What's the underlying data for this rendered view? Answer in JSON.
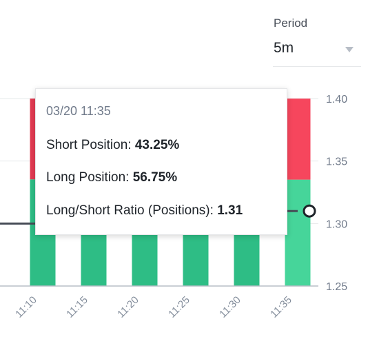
{
  "period": {
    "label": "Period",
    "value": "5m"
  },
  "tooltip": {
    "time": "03/20 11:35",
    "short_label": "Short Position: ",
    "short_value": "43.25%",
    "long_label": "Long Position: ",
    "long_value": "56.75%",
    "ratio_label": "Long/Short Ratio (Positions): ",
    "ratio_value": "1.31"
  },
  "colors": {
    "short": "#e13a52",
    "short_active": "#f6465d",
    "long": "#2ebd85",
    "long_active": "#46d59a",
    "ratio_line": "#474d57"
  },
  "chart_data": {
    "type": "bar",
    "categories": [
      "11:10",
      "11:15",
      "11:20",
      "11:25",
      "11:30",
      "11:35"
    ],
    "series": [
      {
        "name": "Short Position",
        "values": [
          43.1,
          43.2,
          43.2,
          43.2,
          43.2,
          43.25
        ]
      },
      {
        "name": "Long Position",
        "values": [
          56.9,
          56.8,
          56.8,
          56.8,
          56.8,
          56.75
        ]
      },
      {
        "name": "Long/Short Ratio (Positions)",
        "values": [
          1.3,
          1.31,
          1.31,
          1.31,
          1.31,
          1.31
        ]
      }
    ],
    "y_ticks": [
      "1.40",
      "1.35",
      "1.30",
      "1.25"
    ],
    "ylim": [
      1.25,
      1.4
    ],
    "highlighted_index": 5,
    "grid": true
  }
}
